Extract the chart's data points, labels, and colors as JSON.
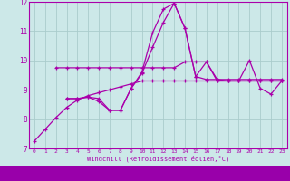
{
  "xlabel": "Windchill (Refroidissement éolien,°C)",
  "xlim": [
    -0.5,
    23.5
  ],
  "ylim": [
    7,
    12
  ],
  "yticks": [
    7,
    8,
    9,
    10,
    11,
    12
  ],
  "xticks": [
    0,
    1,
    2,
    3,
    4,
    5,
    6,
    7,
    8,
    9,
    10,
    11,
    12,
    13,
    14,
    15,
    16,
    17,
    18,
    19,
    20,
    21,
    22,
    23
  ],
  "bg_color": "#cce8e8",
  "grid_color": "#aacccc",
  "line_color": "#aa00aa",
  "line1_x": [
    0,
    1,
    2,
    3,
    4,
    5,
    6,
    7,
    8,
    9,
    10,
    11,
    12,
    13,
    14,
    15,
    16,
    17,
    18,
    19,
    20,
    21,
    22,
    23
  ],
  "line1_y": [
    7.25,
    7.65,
    8.05,
    8.4,
    8.65,
    8.8,
    8.9,
    9.0,
    9.1,
    9.2,
    9.3,
    9.3,
    9.3,
    9.3,
    9.3,
    9.3,
    9.3,
    9.3,
    9.3,
    9.3,
    9.3,
    9.3,
    9.3,
    9.3
  ],
  "line2_x": [
    2,
    3,
    4,
    5,
    6,
    7,
    8,
    9,
    10,
    11,
    12,
    13,
    14,
    15,
    16,
    17,
    18,
    19,
    20,
    21,
    22,
    23
  ],
  "line2_y": [
    9.75,
    9.75,
    9.75,
    9.75,
    9.75,
    9.75,
    9.75,
    9.75,
    9.75,
    9.75,
    9.75,
    9.75,
    9.95,
    9.95,
    9.95,
    9.3,
    9.3,
    9.3,
    9.3,
    9.3,
    9.3,
    9.3
  ],
  "line3_x": [
    3,
    4,
    5,
    6,
    7,
    8,
    9,
    10,
    11,
    12,
    13,
    14,
    15,
    16,
    17,
    18,
    19,
    20,
    21,
    22,
    23
  ],
  "line3_y": [
    8.7,
    8.7,
    8.75,
    8.6,
    8.3,
    8.3,
    9.05,
    9.55,
    10.45,
    11.3,
    11.95,
    11.1,
    9.45,
    9.35,
    9.35,
    9.35,
    9.35,
    9.35,
    9.35,
    9.35,
    9.35
  ],
  "line4_x": [
    3,
    4,
    5,
    6,
    7,
    8,
    9,
    10,
    11,
    12,
    13,
    14,
    15,
    16,
    17,
    18,
    19,
    20,
    21,
    22,
    23
  ],
  "line4_y": [
    8.7,
    8.7,
    8.75,
    8.7,
    8.3,
    8.3,
    9.05,
    9.6,
    10.95,
    11.75,
    11.95,
    11.1,
    9.45,
    9.95,
    9.35,
    9.3,
    9.3,
    10.0,
    9.05,
    8.85,
    9.3
  ],
  "lw": 0.9,
  "ms": 2.5
}
